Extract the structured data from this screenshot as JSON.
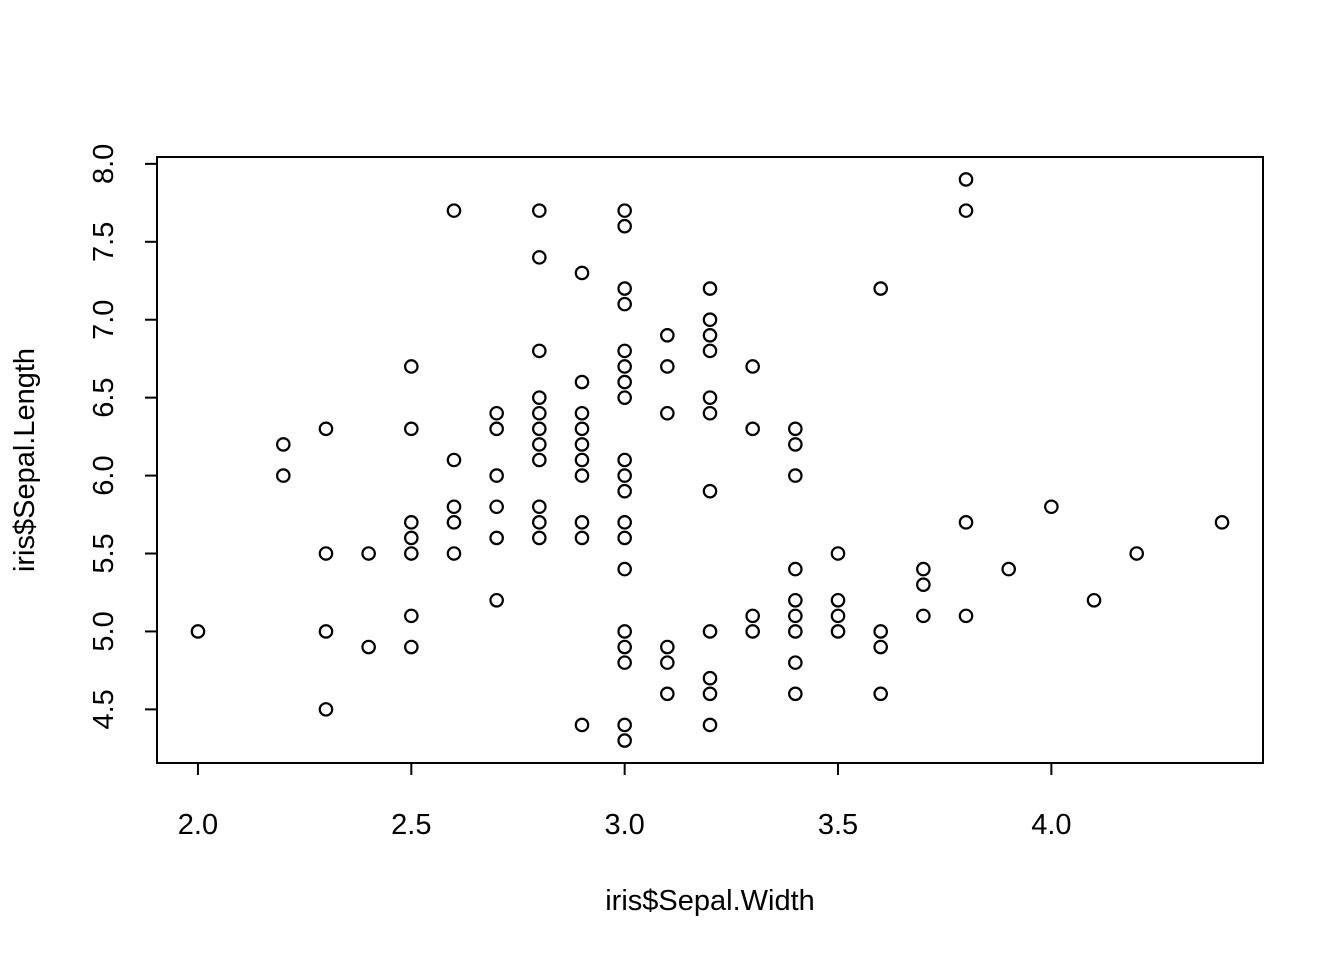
{
  "chart_data": {
    "type": "scatter",
    "title": "",
    "xlabel": "iris$Sepal.Width",
    "ylabel": "iris$Sepal.Length",
    "xlim": [
      1.904,
      4.496
    ],
    "ylim": [
      4.156,
      8.044
    ],
    "xticks": [
      2.0,
      2.5,
      3.0,
      3.5,
      4.0
    ],
    "xtick_labels": [
      "2.0",
      "2.5",
      "3.0",
      "3.5",
      "4.0"
    ],
    "yticks": [
      4.5,
      5.0,
      5.5,
      6.0,
      6.5,
      7.0,
      7.5,
      8.0
    ],
    "ytick_labels": [
      "4.5",
      "5.0",
      "5.5",
      "6.0",
      "6.5",
      "7.0",
      "7.5",
      "8.0"
    ],
    "grid": false,
    "marker": "open-circle",
    "points": [
      [
        2.0,
        5.0
      ],
      [
        2.2,
        6.2
      ],
      [
        2.2,
        6.0
      ],
      [
        2.3,
        6.3
      ],
      [
        2.3,
        5.5
      ],
      [
        2.3,
        5.0
      ],
      [
        2.3,
        4.5
      ],
      [
        2.4,
        5.5
      ],
      [
        2.4,
        4.9
      ],
      [
        2.5,
        6.7
      ],
      [
        2.5,
        6.3
      ],
      [
        2.5,
        5.7
      ],
      [
        2.5,
        5.6
      ],
      [
        2.5,
        5.5
      ],
      [
        2.5,
        5.1
      ],
      [
        2.5,
        4.9
      ],
      [
        2.6,
        7.7
      ],
      [
        2.6,
        6.1
      ],
      [
        2.6,
        5.8
      ],
      [
        2.6,
        5.7
      ],
      [
        2.6,
        5.5
      ],
      [
        2.7,
        6.4
      ],
      [
        2.7,
        6.3
      ],
      [
        2.7,
        6.0
      ],
      [
        2.7,
        5.8
      ],
      [
        2.7,
        5.6
      ],
      [
        2.7,
        5.2
      ],
      [
        2.8,
        7.7
      ],
      [
        2.8,
        7.4
      ],
      [
        2.8,
        6.8
      ],
      [
        2.8,
        6.5
      ],
      [
        2.8,
        6.4
      ],
      [
        2.8,
        6.3
      ],
      [
        2.8,
        6.2
      ],
      [
        2.8,
        6.1
      ],
      [
        2.8,
        5.8
      ],
      [
        2.8,
        5.7
      ],
      [
        2.8,
        5.6
      ],
      [
        2.9,
        7.3
      ],
      [
        2.9,
        6.6
      ],
      [
        2.9,
        6.4
      ],
      [
        2.9,
        6.3
      ],
      [
        2.9,
        6.2
      ],
      [
        2.9,
        6.1
      ],
      [
        2.9,
        6.0
      ],
      [
        2.9,
        5.7
      ],
      [
        2.9,
        5.6
      ],
      [
        2.9,
        4.4
      ],
      [
        3.0,
        7.7
      ],
      [
        3.0,
        7.6
      ],
      [
        3.0,
        7.2
      ],
      [
        3.0,
        7.1
      ],
      [
        3.0,
        6.8
      ],
      [
        3.0,
        6.7
      ],
      [
        3.0,
        6.6
      ],
      [
        3.0,
        6.5
      ],
      [
        3.0,
        6.1
      ],
      [
        3.0,
        6.0
      ],
      [
        3.0,
        5.9
      ],
      [
        3.0,
        5.7
      ],
      [
        3.0,
        5.6
      ],
      [
        3.0,
        5.4
      ],
      [
        3.0,
        5.0
      ],
      [
        3.0,
        4.9
      ],
      [
        3.0,
        4.8
      ],
      [
        3.0,
        4.4
      ],
      [
        3.0,
        4.3
      ],
      [
        3.1,
        6.9
      ],
      [
        3.1,
        6.7
      ],
      [
        3.1,
        6.4
      ],
      [
        3.1,
        4.9
      ],
      [
        3.1,
        4.8
      ],
      [
        3.1,
        4.6
      ],
      [
        3.2,
        7.2
      ],
      [
        3.2,
        7.0
      ],
      [
        3.2,
        6.9
      ],
      [
        3.2,
        6.8
      ],
      [
        3.2,
        6.5
      ],
      [
        3.2,
        6.4
      ],
      [
        3.2,
        5.9
      ],
      [
        3.2,
        5.0
      ],
      [
        3.2,
        4.7
      ],
      [
        3.2,
        4.6
      ],
      [
        3.2,
        4.4
      ],
      [
        3.3,
        6.7
      ],
      [
        3.3,
        6.3
      ],
      [
        3.3,
        5.1
      ],
      [
        3.3,
        5.0
      ],
      [
        3.4,
        6.3
      ],
      [
        3.4,
        6.2
      ],
      [
        3.4,
        6.0
      ],
      [
        3.4,
        5.4
      ],
      [
        3.4,
        5.2
      ],
      [
        3.4,
        5.1
      ],
      [
        3.4,
        5.0
      ],
      [
        3.4,
        4.8
      ],
      [
        3.4,
        4.6
      ],
      [
        3.5,
        5.5
      ],
      [
        3.5,
        5.2
      ],
      [
        3.5,
        5.1
      ],
      [
        3.5,
        5.0
      ],
      [
        3.6,
        7.2
      ],
      [
        3.6,
        5.0
      ],
      [
        3.6,
        4.9
      ],
      [
        3.6,
        4.6
      ],
      [
        3.7,
        5.4
      ],
      [
        3.7,
        5.3
      ],
      [
        3.7,
        5.1
      ],
      [
        3.8,
        7.9
      ],
      [
        3.8,
        7.7
      ],
      [
        3.8,
        5.7
      ],
      [
        3.8,
        5.1
      ],
      [
        3.9,
        5.4
      ],
      [
        4.0,
        5.8
      ],
      [
        4.1,
        5.2
      ],
      [
        4.2,
        5.5
      ],
      [
        4.4,
        5.7
      ]
    ]
  }
}
